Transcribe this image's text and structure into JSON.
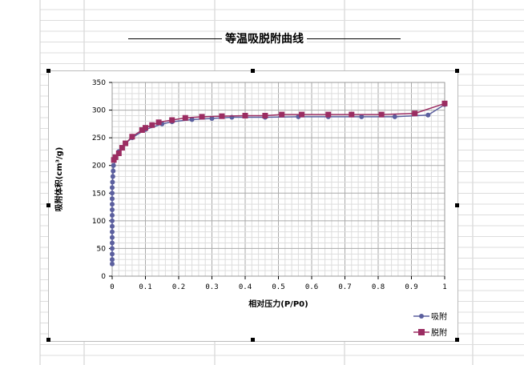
{
  "title": "等温吸脱附曲线",
  "chart_data": {
    "type": "line",
    "title": "等温吸脱附曲线",
    "xlabel": "相对压力(P/P0)",
    "ylabel": "吸附体积(cm³/g)",
    "xlim": [
      0,
      1
    ],
    "ylim": [
      0,
      350
    ],
    "xticks": [
      "0",
      "0.1",
      "0.2",
      "0.3",
      "0.4",
      "0.5",
      "0.6",
      "0.7",
      "0.8",
      "0.9",
      "1"
    ],
    "yticks": [
      "0",
      "50",
      "100",
      "150",
      "200",
      "250",
      "300",
      "350"
    ],
    "grid": true,
    "legend": "bottom-right",
    "series": [
      {
        "name": "吸附",
        "color": "#5b5f9e",
        "marker": "circle",
        "points": [
          [
            0,
            22
          ],
          [
            0,
            30
          ],
          [
            0,
            40
          ],
          [
            0,
            50
          ],
          [
            0,
            60
          ],
          [
            0,
            70
          ],
          [
            0,
            80
          ],
          [
            0,
            90
          ],
          [
            0,
            100
          ],
          [
            0,
            110
          ],
          [
            0,
            120
          ],
          [
            0,
            130
          ],
          [
            0,
            140
          ],
          [
            0,
            150
          ],
          [
            0,
            160
          ],
          [
            0.001,
            170
          ],
          [
            0.002,
            180
          ],
          [
            0.003,
            190
          ],
          [
            0.004,
            200
          ],
          [
            0.02,
            225
          ],
          [
            0.04,
            240
          ],
          [
            0.06,
            250
          ],
          [
            0.1,
            265
          ],
          [
            0.15,
            275
          ],
          [
            0.18,
            279
          ],
          [
            0.24,
            283
          ],
          [
            0.3,
            285
          ],
          [
            0.36,
            287
          ],
          [
            0.46,
            287
          ],
          [
            0.56,
            288
          ],
          [
            0.65,
            288
          ],
          [
            0.75,
            288
          ],
          [
            0.85,
            288
          ],
          [
            0.95,
            291
          ],
          [
            1.0,
            310
          ]
        ]
      },
      {
        "name": "脱附",
        "color": "#9b2d62",
        "marker": "square",
        "points": [
          [
            1.0,
            312
          ],
          [
            0.91,
            294
          ],
          [
            0.81,
            292
          ],
          [
            0.72,
            292
          ],
          [
            0.65,
            292
          ],
          [
            0.57,
            292
          ],
          [
            0.51,
            292
          ],
          [
            0.46,
            290
          ],
          [
            0.4,
            290
          ],
          [
            0.33,
            289
          ],
          [
            0.27,
            288
          ],
          [
            0.22,
            286
          ],
          [
            0.18,
            282
          ],
          [
            0.14,
            278
          ],
          [
            0.12,
            273
          ],
          [
            0.1,
            268
          ],
          [
            0.09,
            264
          ],
          [
            0.06,
            252
          ],
          [
            0.04,
            240
          ],
          [
            0.03,
            232
          ],
          [
            0.02,
            222
          ],
          [
            0.01,
            215
          ],
          [
            0.005,
            210
          ]
        ]
      }
    ]
  }
}
